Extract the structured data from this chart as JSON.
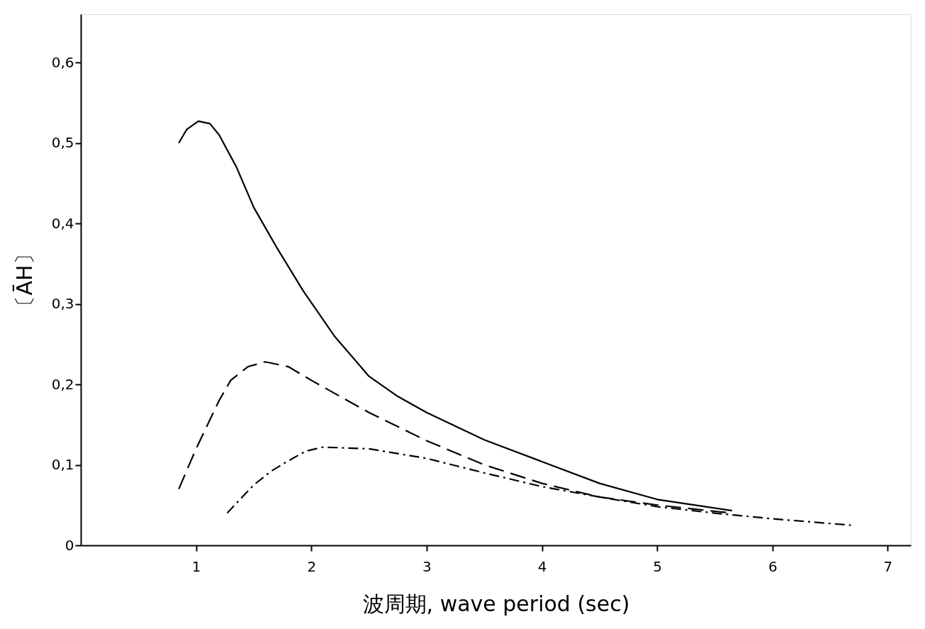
{
  "chart_data": {
    "type": "line",
    "xlabel": "波周期, wave period (sec)",
    "ylabel": "〔ĀH〕",
    "xlim": [
      0,
      7.2
    ],
    "xticks": [
      1,
      2,
      3,
      4,
      5,
      6,
      7
    ],
    "ylim": [
      0,
      0.66
    ],
    "yticks": [
      0,
      {
        "value": 0.1,
        "label": "0,1"
      },
      {
        "value": 0.2,
        "label": "0,2"
      },
      {
        "value": 0.3,
        "label": "0,3"
      },
      {
        "value": 0.4,
        "label": "0,4"
      },
      {
        "value": 0.5,
        "label": "0,5"
      },
      {
        "value": 0.6,
        "label": "0,6"
      }
    ],
    "grid": false,
    "marker": "none",
    "series": [
      {
        "color": "#000000",
        "line_style": "solid",
        "x": [
          0.85,
          0.92,
          1.02,
          1.12,
          1.2,
          1.35,
          1.5,
          1.7,
          1.93,
          2.2,
          2.5,
          2.75,
          3,
          3.5,
          4,
          4.5,
          5,
          5.65
        ],
        "values": [
          0.5,
          0.517,
          0.527,
          0.524,
          0.51,
          0.47,
          0.42,
          0.37,
          0.316,
          0.26,
          0.21,
          0.185,
          0.165,
          0.131,
          0.104,
          0.077,
          0.057,
          0.043
        ]
      },
      {
        "color": "#000000",
        "line_style": "dashed",
        "x": [
          0.85,
          1.0,
          1.1,
          1.2,
          1.3,
          1.45,
          1.6,
          1.8,
          2.0,
          2.5,
          3,
          3.5,
          4,
          4.5,
          5,
          5.65
        ],
        "values": [
          0.07,
          0.12,
          0.15,
          0.18,
          0.205,
          0.222,
          0.228,
          0.222,
          0.205,
          0.165,
          0.13,
          0.1,
          0.077,
          0.06,
          0.05,
          0.04
        ]
      },
      {
        "color": "#000000",
        "line_style": "dashdot",
        "x": [
          1.27,
          1.4,
          1.5,
          1.65,
          1.8,
          1.95,
          2.1,
          2.5,
          3,
          3.5,
          4,
          4.5,
          5,
          5.5,
          6,
          6.68
        ],
        "values": [
          0.04,
          0.06,
          0.075,
          0.092,
          0.105,
          0.117,
          0.122,
          0.12,
          0.108,
          0.09,
          0.073,
          0.06,
          0.048,
          0.04,
          0.033,
          0.025
        ]
      }
    ]
  }
}
